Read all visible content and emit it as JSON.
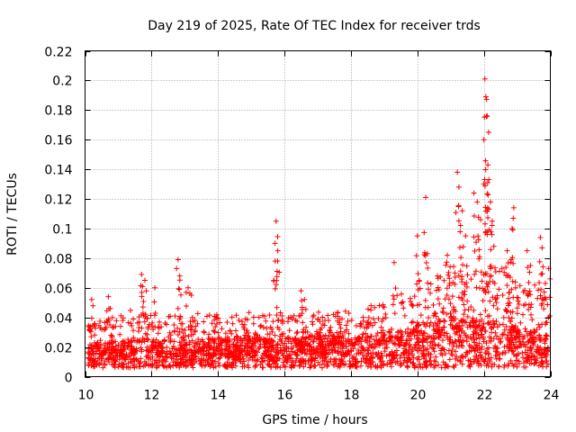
{
  "chart_data": {
    "type": "scatter",
    "title": "Day 219 of 2025, Rate Of TEC Index for receiver trds",
    "xlabel": "GPS time / hours",
    "ylabel": "ROTI / TECUs",
    "xlim": [
      10,
      24
    ],
    "ylim": [
      0,
      0.22
    ],
    "xticks": [
      10,
      12,
      14,
      16,
      18,
      20,
      22,
      24
    ],
    "xtick_labels": [
      "10",
      "12",
      "14",
      "16",
      "18",
      "20",
      "22",
      "24"
    ],
    "yticks": [
      0,
      0.02,
      0.04,
      0.06,
      0.08,
      0.1,
      0.12,
      0.14,
      0.16,
      0.18,
      0.2,
      0.22
    ],
    "ytick_labels": [
      "0",
      "0.02",
      "0.04",
      "0.06",
      "0.08",
      "0.1",
      "0.12",
      "0.14",
      "0.16",
      "0.18",
      "0.2",
      "0.22"
    ],
    "grid": true,
    "marker": "+",
    "series_color": "#ff0000",
    "series": [
      {
        "name": "ROTI",
        "base_profile": [
          [
            10.1,
            0.018
          ],
          [
            12,
            0.02
          ],
          [
            14,
            0.02
          ],
          [
            16,
            0.022
          ],
          [
            18,
            0.022
          ],
          [
            19.5,
            0.026
          ],
          [
            20.5,
            0.03
          ],
          [
            21.5,
            0.032
          ],
          [
            22.5,
            0.03
          ],
          [
            24,
            0.022
          ]
        ],
        "envelope_profile": [
          [
            10.1,
            0.035
          ],
          [
            11,
            0.045
          ],
          [
            12,
            0.045
          ],
          [
            14,
            0.042
          ],
          [
            16,
            0.045
          ],
          [
            17.5,
            0.043
          ],
          [
            19,
            0.05
          ],
          [
            20,
            0.065
          ],
          [
            21,
            0.075
          ],
          [
            22,
            0.08
          ],
          [
            23,
            0.07
          ],
          [
            24,
            0.055
          ]
        ],
        "peaks": [
          [
            10.2,
            0.052
          ],
          [
            10.7,
            0.054
          ],
          [
            11.7,
            0.069
          ],
          [
            11.8,
            0.065
          ],
          [
            12.1,
            0.06
          ],
          [
            12.8,
            0.079
          ],
          [
            12.85,
            0.068
          ],
          [
            13.1,
            0.06
          ],
          [
            13.2,
            0.055
          ],
          [
            15.75,
            0.105
          ],
          [
            15.8,
            0.085
          ],
          [
            15.72,
            0.078
          ],
          [
            16.5,
            0.058
          ],
          [
            16.6,
            0.052
          ],
          [
            17.6,
            0.043
          ],
          [
            19.3,
            0.077
          ],
          [
            20.0,
            0.095
          ],
          [
            20.25,
            0.121
          ],
          [
            20.3,
            0.083
          ],
          [
            20.6,
            0.068
          ],
          [
            21.2,
            0.138
          ],
          [
            21.25,
            0.128
          ],
          [
            21.35,
            0.112
          ],
          [
            21.7,
            0.124
          ],
          [
            21.8,
            0.118
          ],
          [
            21.9,
            0.106
          ],
          [
            22.0,
            0.16
          ],
          [
            22.03,
            0.201
          ],
          [
            22.06,
            0.189
          ],
          [
            22.1,
            0.176
          ],
          [
            22.12,
            0.143
          ],
          [
            22.15,
            0.133
          ],
          [
            22.2,
            0.118
          ],
          [
            22.25,
            0.105
          ],
          [
            22.1,
            0.096
          ],
          [
            22.3,
            0.088
          ],
          [
            22.7,
            0.085
          ],
          [
            22.9,
            0.114
          ],
          [
            22.85,
            0.1
          ],
          [
            23.3,
            0.085
          ],
          [
            23.4,
            0.075
          ],
          [
            23.7,
            0.094
          ],
          [
            23.75,
            0.087
          ],
          [
            23.85,
            0.063
          ],
          [
            23.95,
            0.073
          ],
          [
            21.45,
            0.095
          ],
          [
            20.9,
            0.082
          ]
        ]
      }
    ]
  }
}
